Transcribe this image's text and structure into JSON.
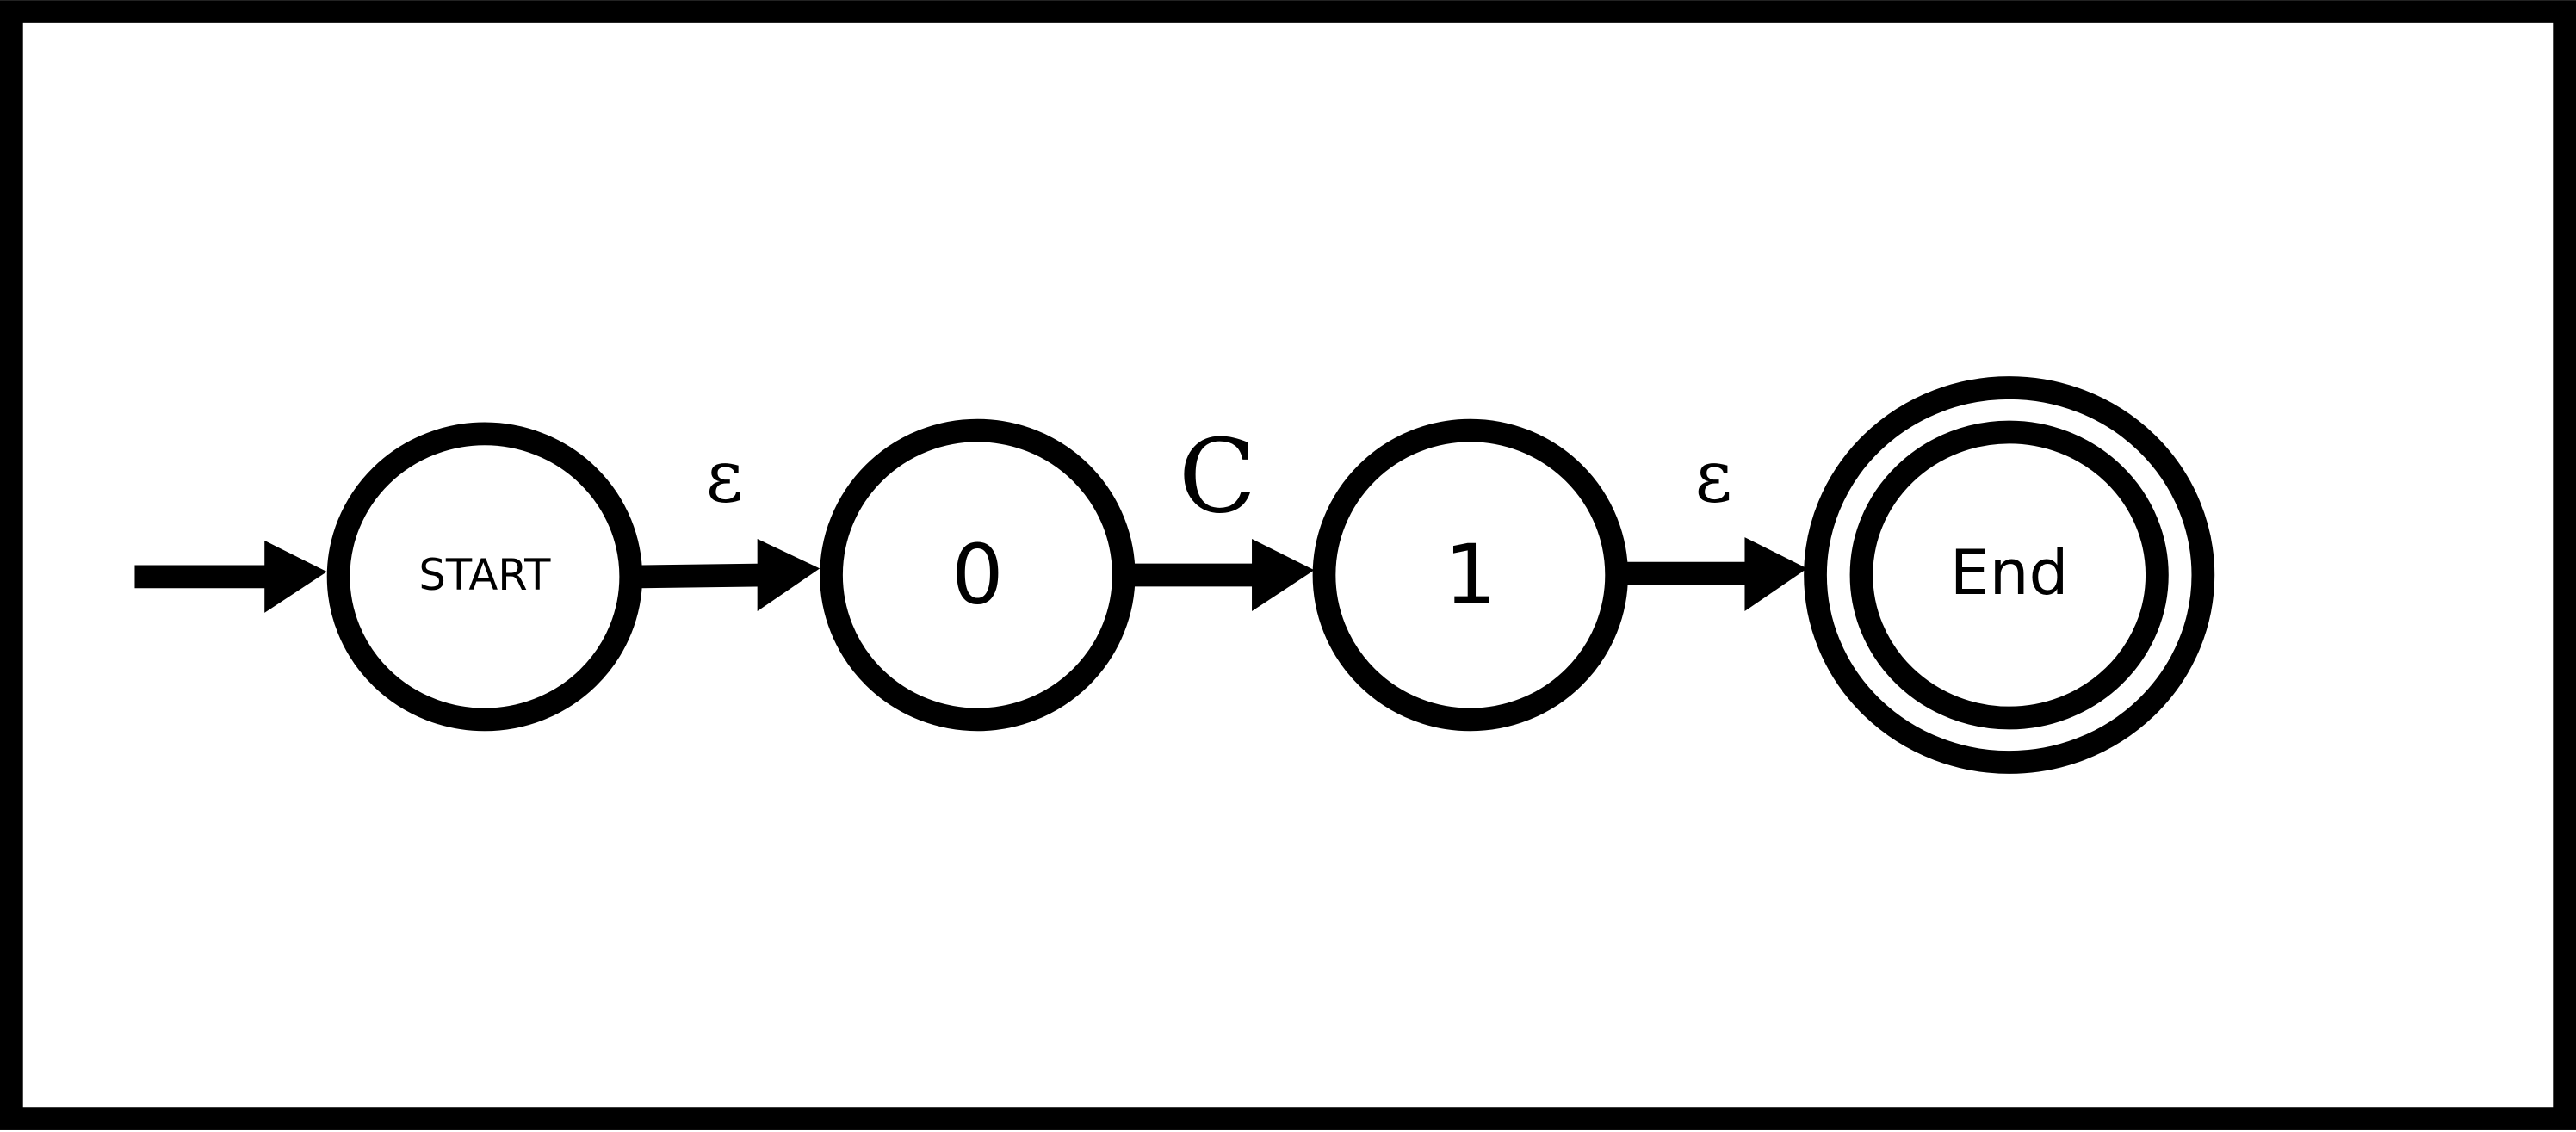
{
  "diagram": {
    "states": {
      "start": {
        "label": "START"
      },
      "s0": {
        "label": "0"
      },
      "s1": {
        "label": "1"
      },
      "end": {
        "label": "End",
        "accepting": true
      }
    },
    "transitions": {
      "start_to_s0": {
        "label": "ε"
      },
      "s0_to_s1": {
        "label": "C"
      },
      "s1_to_end": {
        "label": "ε"
      }
    }
  }
}
